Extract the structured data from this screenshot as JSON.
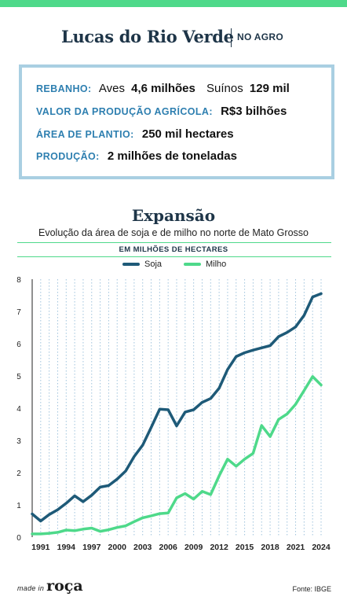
{
  "header": {
    "title": "Lucas do Rio Verde",
    "tag": "NO AGRO"
  },
  "info": {
    "rebanho_label": "REBANHO:",
    "aves_label": "Aves",
    "aves_value": "4,6 milhões",
    "suinos_label": "Suínos",
    "suinos_value": "129 mil",
    "valor_label": "VALOR DA PRODUÇÃO AGRÍCOLA:",
    "valor_value": "R$3 bilhões",
    "area_label": "ÁREA DE PLANTIO:",
    "area_value": "250 mil hectares",
    "producao_label": "PRODUÇÃO:",
    "producao_value": "2 milhões de toneladas"
  },
  "section": {
    "title": "Expansão",
    "subtitle": "Evolução da área de soja e de milho no norte de Mato Grosso",
    "units": "EM MILHÕES DE HECTARES"
  },
  "colors": {
    "soja": "#1e5a78",
    "milho": "#4ed98a",
    "accent": "#4ed98a",
    "title": "#1e3548",
    "label": "#2e7fb0"
  },
  "chart_data": {
    "type": "line",
    "x": [
      1990,
      1991,
      1992,
      1993,
      1994,
      1995,
      1996,
      1997,
      1998,
      1999,
      2000,
      2001,
      2002,
      2003,
      2004,
      2005,
      2006,
      2007,
      2008,
      2009,
      2010,
      2011,
      2012,
      2013,
      2014,
      2015,
      2016,
      2017,
      2018,
      2019,
      2020,
      2021,
      2022,
      2023,
      2024
    ],
    "x_tick_labels": [
      "1991",
      "1994",
      "1997",
      "2000",
      "2003",
      "2006",
      "2009",
      "2012",
      "2015",
      "2018",
      "2021",
      "2024"
    ],
    "x_tick_values": [
      1991,
      1994,
      1997,
      2000,
      2003,
      2006,
      2009,
      2012,
      2015,
      2018,
      2021,
      2024
    ],
    "y_ticks": [
      0,
      1,
      2,
      3,
      4,
      5,
      6,
      7,
      8
    ],
    "ylim": [
      0,
      8
    ],
    "xlim": [
      1990,
      2024
    ],
    "grid": true,
    "legend_position": "top-center",
    "series": [
      {
        "name": "Soja",
        "values": [
          0.72,
          0.5,
          0.7,
          0.85,
          1.05,
          1.28,
          1.1,
          1.3,
          1.55,
          1.6,
          1.8,
          2.05,
          2.5,
          2.85,
          3.4,
          3.97,
          3.95,
          3.45,
          3.88,
          3.95,
          4.18,
          4.3,
          4.62,
          5.2,
          5.6,
          5.72,
          5.8,
          5.87,
          5.94,
          6.22,
          6.35,
          6.52,
          6.88,
          7.45,
          7.55
        ]
      },
      {
        "name": "Milho",
        "values": [
          0.1,
          0.1,
          0.12,
          0.15,
          0.22,
          0.2,
          0.25,
          0.28,
          0.18,
          0.23,
          0.3,
          0.35,
          0.48,
          0.6,
          0.66,
          0.73,
          0.75,
          1.22,
          1.35,
          1.18,
          1.42,
          1.32,
          1.9,
          2.42,
          2.2,
          2.42,
          2.6,
          3.46,
          3.12,
          3.65,
          3.82,
          4.12,
          4.55,
          4.98,
          4.72
        ]
      }
    ]
  },
  "footer": {
    "brand_small": "made in",
    "brand_big": "roça",
    "source": "Fonte: IBGE"
  }
}
